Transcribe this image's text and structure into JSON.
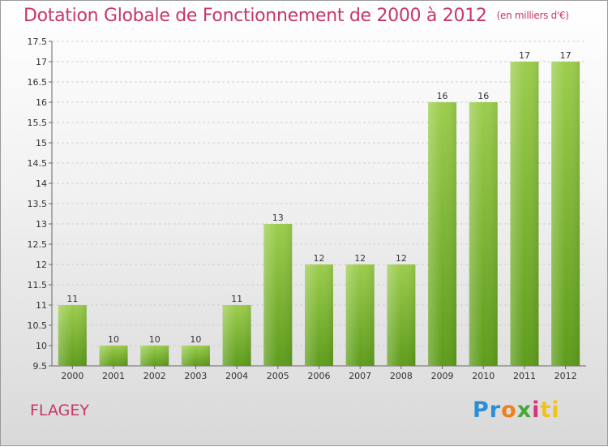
{
  "title": "Dotation Globale de Fonctionnement de 2000 à 2012",
  "unit": "(en milliers d'€)",
  "commune": "FLAGEY",
  "logo": "Proxiti",
  "colors": {
    "title": "#c8366a",
    "bar_light": "#9ccd4d",
    "bar_dark": "#5e9c1b"
  },
  "chart_data": {
    "type": "bar",
    "title": "Dotation Globale de Fonctionnement de 2000 à 2012",
    "subtitle": "(en milliers d'€)",
    "categories": [
      "2000",
      "2001",
      "2002",
      "2003",
      "2004",
      "2005",
      "2006",
      "2007",
      "2008",
      "2009",
      "2010",
      "2011",
      "2012"
    ],
    "values": [
      11,
      10,
      10,
      10,
      11,
      13,
      12,
      12,
      12,
      16,
      16,
      17,
      17
    ],
    "ylim": [
      9.5,
      17.5
    ],
    "yticks": [
      "9.5",
      "10",
      "10.5",
      "11",
      "11.5",
      "12",
      "12.5",
      "13",
      "13.5",
      "14",
      "14.5",
      "15",
      "15.5",
      "16",
      "16.5",
      "17",
      "17.5"
    ],
    "grid": true,
    "xlabel": "",
    "ylabel": ""
  }
}
